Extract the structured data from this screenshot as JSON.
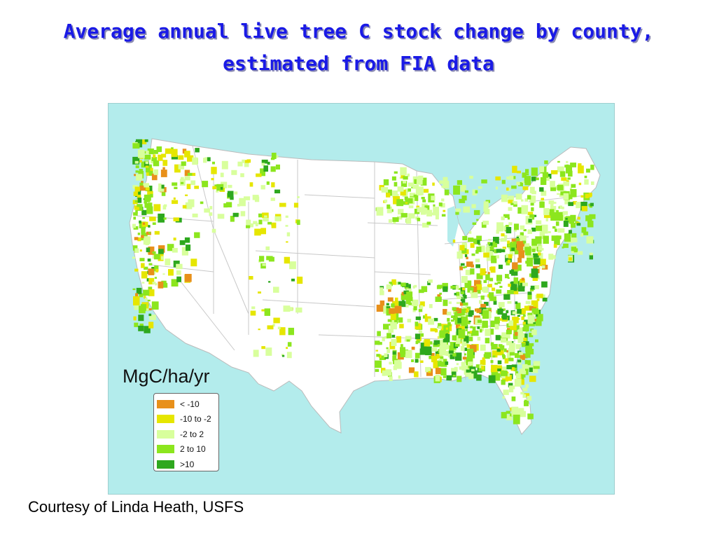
{
  "title": {
    "line1": "Average annual live tree C stock change by county,",
    "line2": "estimated from FIA data"
  },
  "map": {
    "ocean_color": "#b3ecec",
    "land_color": "#ffffff",
    "border_color": "#c8c8c8",
    "unit_label": "MgC/ha/yr"
  },
  "legend": {
    "items": [
      {
        "label": "< -10",
        "color": "#e8901a"
      },
      {
        "label": "-10 to -2",
        "color": "#e6e600"
      },
      {
        "label": "-2 to 2",
        "color": "#d8ff9c"
      },
      {
        "label": "2 to 10",
        "color": "#8ce61e"
      },
      {
        "label": ">10",
        "color": "#2ea81e"
      }
    ]
  },
  "credit": "Courtesy of Linda Heath, USFS"
}
